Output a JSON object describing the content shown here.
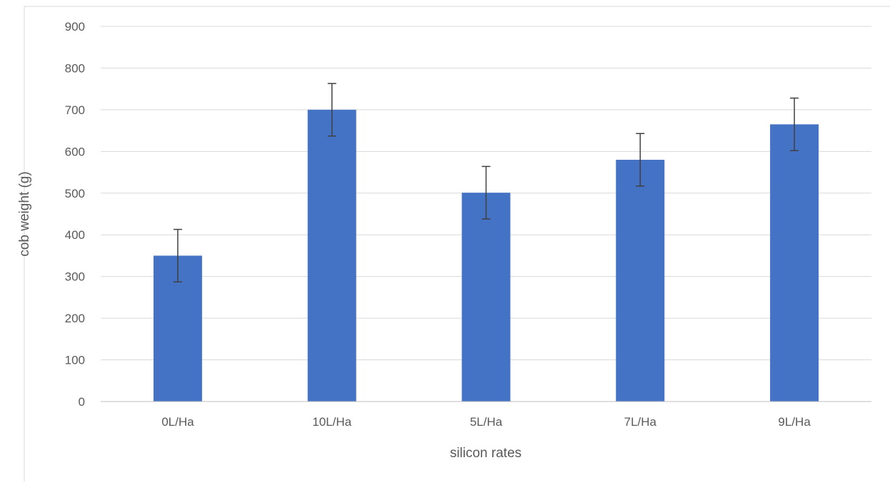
{
  "chart_data": {
    "type": "bar",
    "title": "",
    "xlabel": "silicon rates",
    "ylabel": "cob weight (g)",
    "categories": [
      "0L/Ha",
      "10L/Ha",
      "5L/Ha",
      "7L/Ha",
      "9L/Ha"
    ],
    "values": [
      350,
      700,
      501,
      580,
      665
    ],
    "error": [
      63,
      63,
      63,
      63,
      63
    ],
    "ylim": [
      0,
      900
    ],
    "yticks": [
      0,
      100,
      200,
      300,
      400,
      500,
      600,
      700,
      800,
      900
    ],
    "ytick_labels": [
      "0",
      "100",
      "200",
      "300",
      "400",
      "500",
      "600",
      "700",
      "800",
      "900"
    ],
    "grid": true,
    "legend": "none",
    "colors": {
      "bar": "#4472C4",
      "grid": "#D9D9D9",
      "axis": "#BFBFBF",
      "error_bar": "#404040",
      "text": "#595959",
      "border": "#D9D9D9"
    }
  }
}
